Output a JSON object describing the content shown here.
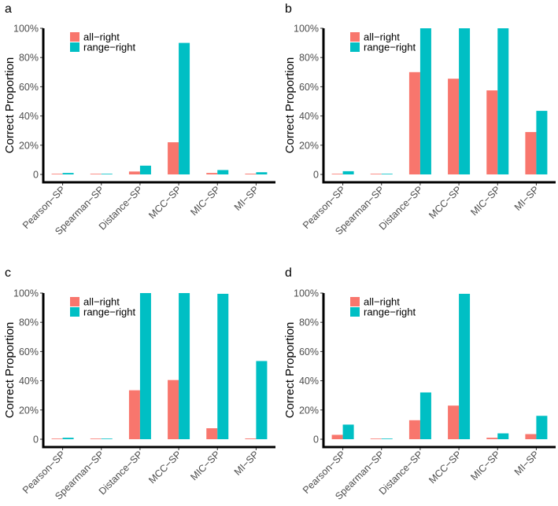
{
  "colors": {
    "all_right": "#F8766D",
    "range_right": "#00BFC4"
  },
  "chart_data": [
    {
      "panel": "a",
      "type": "bar",
      "ylabel": "Correct Proportion",
      "xlabel": "",
      "categories": [
        "Pearson−SP",
        "Spearman−SP",
        "Distance−SP",
        "MCC−SP",
        "MIC−SP",
        "MI−SP"
      ],
      "ylim": [
        0,
        1.0
      ],
      "yticks": [
        0,
        0.2,
        0.4,
        0.6,
        0.8,
        1.0
      ],
      "ytick_labels": [
        "0",
        "20%",
        "40%",
        "60%",
        "80%",
        "100%"
      ],
      "legend": [
        "all−right",
        "range−right"
      ],
      "series": [
        {
          "name": "all−right",
          "values": [
            0.002,
            0.001,
            0.02,
            0.22,
            0.01,
            0.005
          ]
        },
        {
          "name": "range−right",
          "values": [
            0.01,
            0.003,
            0.06,
            0.9,
            0.03,
            0.015
          ]
        }
      ]
    },
    {
      "panel": "b",
      "type": "bar",
      "ylabel": "Correct Proportion",
      "xlabel": "",
      "categories": [
        "Pearson−SP",
        "Spearman−SP",
        "Distance−SP",
        "MCC−SP",
        "MIC−SP",
        "MI−SP"
      ],
      "ylim": [
        0,
        1.0
      ],
      "yticks": [
        0,
        0.2,
        0.4,
        0.6,
        0.8,
        1.0
      ],
      "ytick_labels": [
        "0",
        "20%",
        "40%",
        "60%",
        "80%",
        "100%"
      ],
      "legend": [
        "all−right",
        "range−right"
      ],
      "series": [
        {
          "name": "all−right",
          "values": [
            0.004,
            0.002,
            0.7,
            0.655,
            0.575,
            0.29
          ]
        },
        {
          "name": "range−right",
          "values": [
            0.022,
            0.004,
            1.0,
            1.0,
            1.0,
            0.435
          ]
        }
      ]
    },
    {
      "panel": "c",
      "type": "bar",
      "ylabel": "Correct Proportion",
      "xlabel": "",
      "categories": [
        "Pearson−SP",
        "Spearman−SP",
        "Distance−SP",
        "MCC−SP",
        "MIC−SP",
        "MI−SP"
      ],
      "ylim": [
        0,
        1.0
      ],
      "yticks": [
        0,
        0.2,
        0.4,
        0.6,
        0.8,
        1.0
      ],
      "ytick_labels": [
        "0",
        "20%",
        "40%",
        "60%",
        "80%",
        "100%"
      ],
      "legend": [
        "all−right",
        "range−right"
      ],
      "series": [
        {
          "name": "all−right",
          "values": [
            0.001,
            0.001,
            0.335,
            0.405,
            0.075,
            0.005
          ]
        },
        {
          "name": "range−right",
          "values": [
            0.01,
            0.002,
            1.0,
            1.0,
            0.995,
            0.535
          ]
        }
      ]
    },
    {
      "panel": "d",
      "type": "bar",
      "ylabel": "Correct Proportion",
      "xlabel": "",
      "categories": [
        "Pearson−SP",
        "Spearman−SP",
        "Distance−SP",
        "MCC−SP",
        "MIC−SP",
        "MI−SP"
      ],
      "ylim": [
        0,
        1.0
      ],
      "yticks": [
        0,
        0.2,
        0.4,
        0.6,
        0.8,
        1.0
      ],
      "ytick_labels": [
        "0",
        "20%",
        "40%",
        "60%",
        "80%",
        "100%"
      ],
      "legend": [
        "all−right",
        "range−right"
      ],
      "series": [
        {
          "name": "all−right",
          "values": [
            0.03,
            0.001,
            0.13,
            0.23,
            0.01,
            0.035
          ]
        },
        {
          "name": "range−right",
          "values": [
            0.1,
            0.002,
            0.32,
            0.995,
            0.04,
            0.16
          ]
        }
      ]
    }
  ]
}
